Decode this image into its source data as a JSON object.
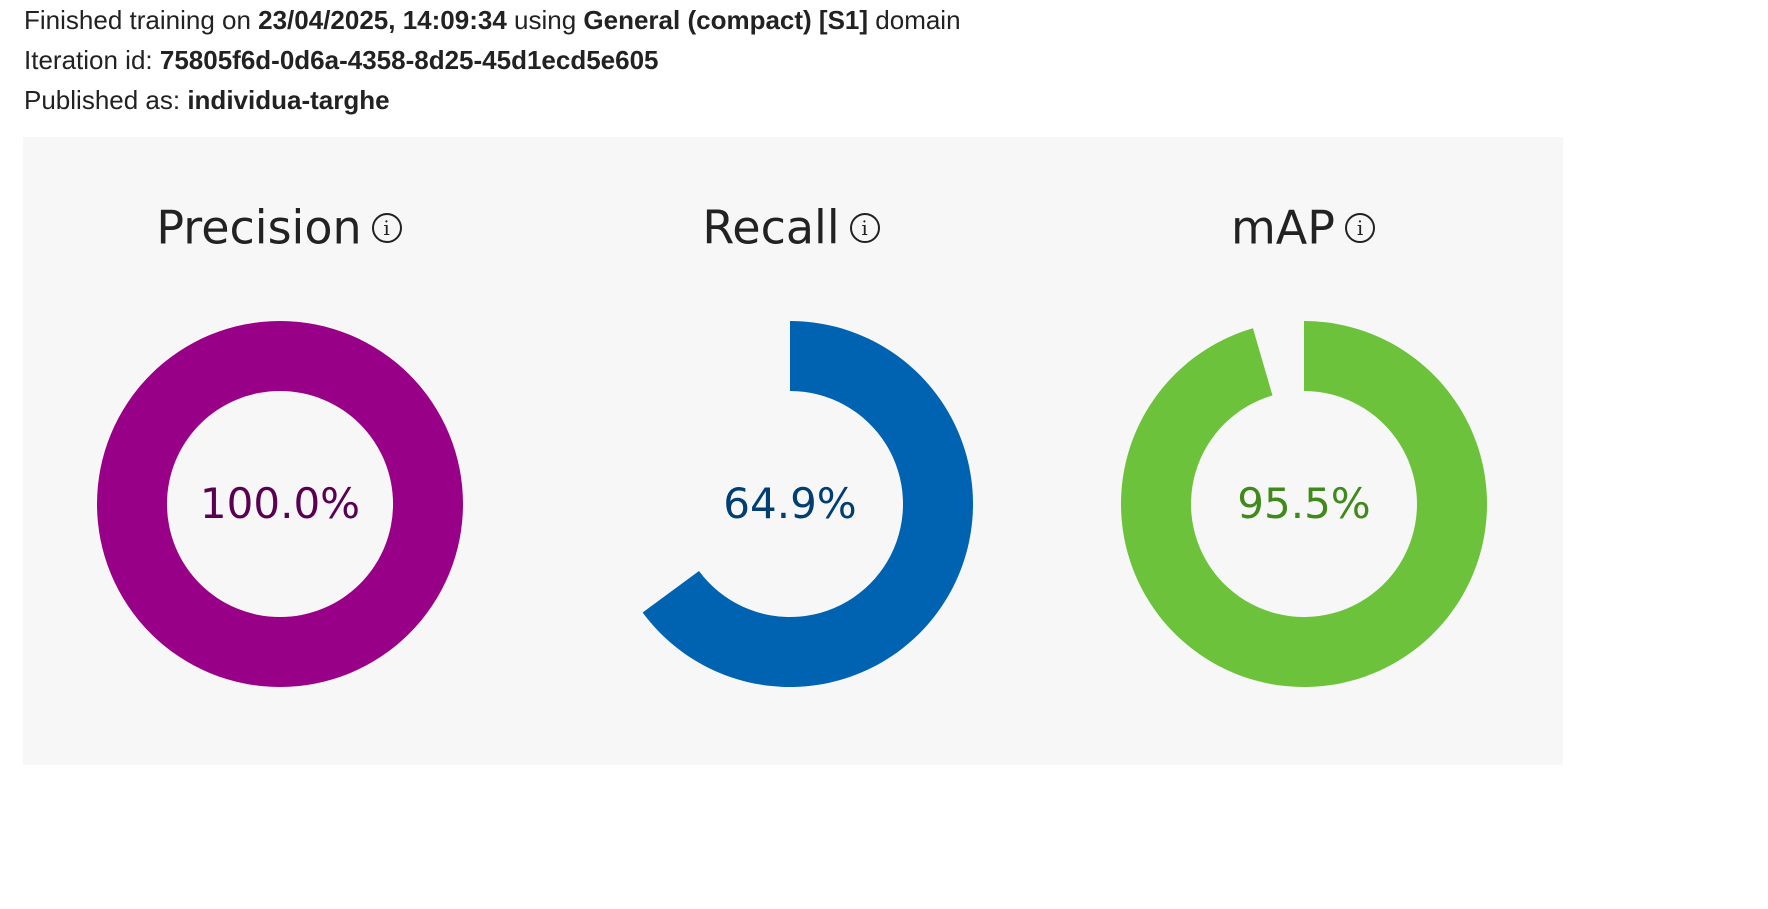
{
  "header": {
    "line1": {
      "prefix": "Finished training on ",
      "date": "23/04/2025, 14:09:34",
      "middle": " using ",
      "domain": "General (compact) [S1]",
      "suffix": " domain"
    },
    "line2": {
      "label": "Iteration id: ",
      "value": "75805f6d-0d6a-4358-8d25-45d1ecd5e605"
    },
    "line3": {
      "label": "Published as: ",
      "value": "individua-targhe"
    }
  },
  "metrics": [
    {
      "title": "Precision",
      "value_label": "100.0%",
      "fraction": 1.0,
      "color": "#990088",
      "text_color": "#5a0052",
      "info_icon": "info-icon",
      "info_glyph": "i"
    },
    {
      "title": "Recall",
      "value_label": "64.9%",
      "fraction": 0.649,
      "color": "#0063b1",
      "text_color": "#003e73",
      "info_icon": "info-icon",
      "info_glyph": "i"
    },
    {
      "title": "mAP",
      "value_label": "95.5%",
      "fraction": 0.955,
      "color": "#6cc23a",
      "text_color": "#3f8a1a",
      "info_icon": "info-icon",
      "info_glyph": "i"
    }
  ]
}
